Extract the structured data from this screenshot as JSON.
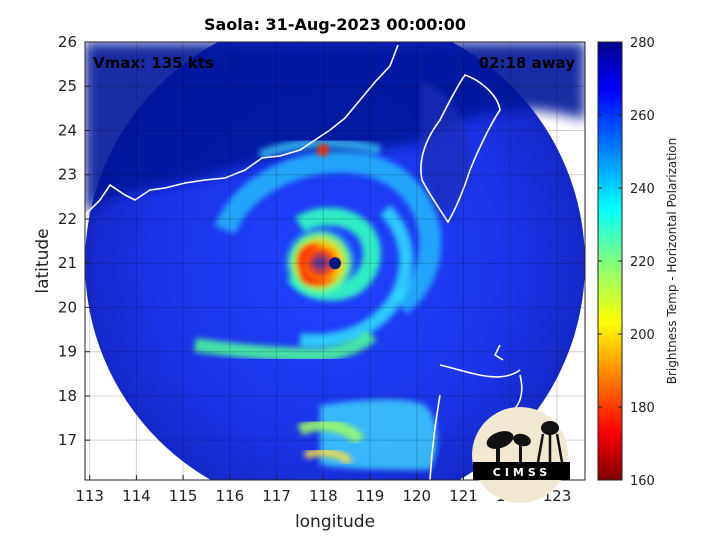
{
  "chart_data": {
    "type": "heatmap",
    "title": "Saola: 31-Aug-2023 00:00:00",
    "xlabel": "longitude",
    "ylabel": "latitude",
    "xlim": [
      112.9,
      123.6
    ],
    "ylim": [
      16.1,
      26.0
    ],
    "x_ticks": [
      "113",
      "114",
      "115",
      "116",
      "117",
      "118",
      "119",
      "120",
      "121",
      "122",
      "123"
    ],
    "y_ticks": [
      "26",
      "25",
      "24",
      "23",
      "22",
      "21",
      "20",
      "19",
      "18",
      "17"
    ],
    "grid": true,
    "annotations": {
      "vmax": "Vmax: 135 kts",
      "time_away": "02:18 away"
    },
    "colorbar": {
      "label": "Brightness Temp - Horizontal Polarization",
      "min": 160,
      "max": 280,
      "ticks": [
        "280",
        "260",
        "240",
        "220",
        "200",
        "180",
        "160"
      ],
      "colormap": "jet"
    },
    "storm_center": {
      "lon": 118.25,
      "lat": 21.0
    },
    "swath": {
      "center_lon": 118.3,
      "center_lat": 21.1
    },
    "logo_text": "CIMSS"
  }
}
